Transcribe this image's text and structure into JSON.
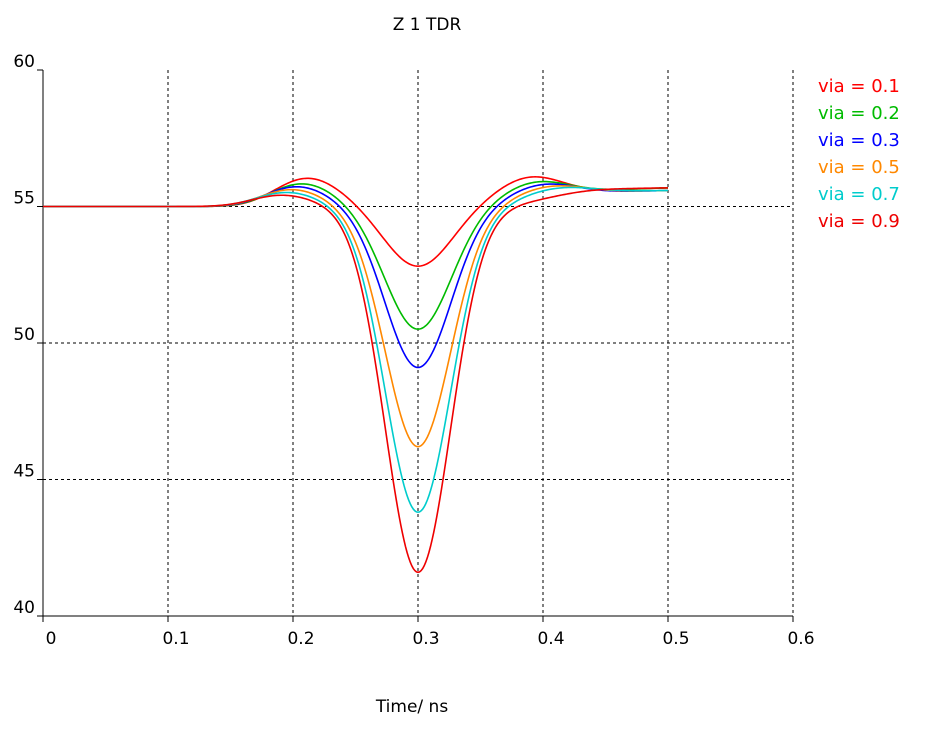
{
  "chart_data": {
    "type": "line",
    "title": "Z 1 TDR",
    "xlabel": "Time/ ns",
    "ylabel": "",
    "xlim": [
      0,
      0.6
    ],
    "ylim": [
      40,
      60
    ],
    "x_ticks": [
      "0",
      "0.1",
      "0.2",
      "0.3",
      "0.4",
      "0.5",
      "0.6"
    ],
    "y_ticks": [
      "40",
      "45",
      "50",
      "55",
      "60"
    ],
    "grid": true,
    "legend_position": "right",
    "baseline": 55,
    "series": [
      {
        "name": "via = 0.1",
        "color": "#ff0000",
        "peak_x": 0.21,
        "peak_y": 56.1,
        "min_x": 0.3,
        "min_y": 52.8,
        "overshoot_x": 0.39,
        "overshoot_y": 56.7,
        "end_y": 55.7
      },
      {
        "name": "via = 0.2",
        "color": "#00bb00",
        "peak_x": 0.205,
        "peak_y": 55.9,
        "min_x": 0.3,
        "min_y": 50.5,
        "overshoot_x": 0.395,
        "overshoot_y": 56.5,
        "end_y": 55.7
      },
      {
        "name": "via = 0.3",
        "color": "#0000ff",
        "peak_x": 0.2,
        "peak_y": 55.8,
        "min_x": 0.3,
        "min_y": 49.1,
        "overshoot_x": 0.4,
        "overshoot_y": 56.3,
        "end_y": 55.6
      },
      {
        "name": "via = 0.5",
        "color": "#ff8800",
        "peak_x": 0.195,
        "peak_y": 55.7,
        "min_x": 0.3,
        "min_y": 46.2,
        "overshoot_x": 0.405,
        "overshoot_y": 56.2,
        "end_y": 55.6
      },
      {
        "name": "via = 0.7",
        "color": "#00cccc",
        "peak_x": 0.19,
        "peak_y": 55.6,
        "min_x": 0.3,
        "min_y": 43.8,
        "overshoot_x": 0.41,
        "overshoot_y": 56.1,
        "end_y": 55.6
      },
      {
        "name": "via = 0.9",
        "color": "#ee0000",
        "peak_x": 0.185,
        "peak_y": 55.5,
        "min_x": 0.3,
        "min_y": 41.6,
        "overshoot_x": 0.42,
        "overshoot_y": 55.9,
        "end_y": 55.7
      }
    ]
  }
}
